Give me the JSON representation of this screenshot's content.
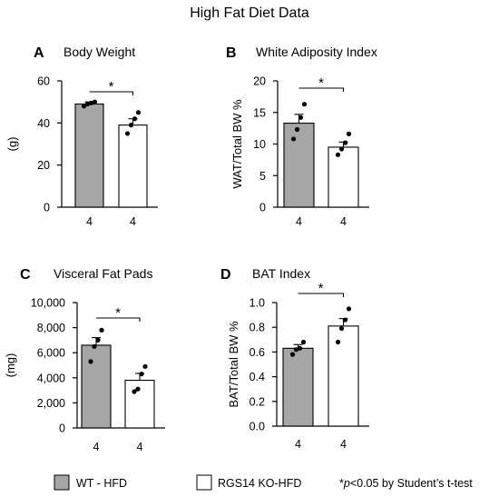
{
  "figure": {
    "title": "High Fat Diet Data",
    "legend": [
      {
        "label": "WT - HFD",
        "color": "#a6a6a6"
      },
      {
        "label": "RGS14 KO-HFD",
        "color": "#ffffff"
      }
    ],
    "footnote": {
      "prefix": "*",
      "italic": "p",
      "suffix": "<0.05 by Student’s t-test"
    }
  },
  "chart_data": [
    {
      "type": "bar",
      "panel_letter": "A",
      "title": "Body Weight",
      "ylabel": "(g)",
      "ylim": [
        0,
        60
      ],
      "yticks": [
        0,
        20,
        40,
        60
      ],
      "ytick_labels": [
        "0",
        "20",
        "40",
        "60"
      ],
      "categories": [
        "4",
        "4"
      ],
      "values": [
        49,
        39
      ],
      "errors": [
        1,
        3
      ],
      "points": [
        [
          48,
          49,
          49.5,
          50
        ],
        [
          35,
          39,
          42,
          45
        ]
      ],
      "significance": "*"
    },
    {
      "type": "bar",
      "panel_letter": "B",
      "title": "White Adiposity Index",
      "ylabel": "WAT/Total BW %",
      "ylim": [
        0,
        20
      ],
      "yticks": [
        0,
        5,
        10,
        15,
        20
      ],
      "ytick_labels": [
        "0",
        "5",
        "10",
        "15",
        "20"
      ],
      "categories": [
        "4",
        "4"
      ],
      "values": [
        13.3,
        9.5
      ],
      "errors": [
        1.4,
        0.8
      ],
      "points": [
        [
          10.8,
          12.3,
          14.2,
          16.3
        ],
        [
          8.3,
          9.2,
          10.2,
          11.6
        ]
      ],
      "significance": "*"
    },
    {
      "type": "bar",
      "panel_letter": "C",
      "title": "Visceral Fat Pads",
      "ylabel": "(mg)",
      "ylim": [
        0,
        10000
      ],
      "yticks": [
        0,
        2000,
        4000,
        6000,
        8000,
        10000
      ],
      "ytick_labels": [
        "0",
        "2,000",
        "4,000",
        "6,000",
        "8,000",
        "10,000"
      ],
      "categories": [
        "4",
        "4"
      ],
      "values": [
        6600,
        3800
      ],
      "errors": [
        600,
        550
      ],
      "points": [
        [
          5300,
          6500,
          7000,
          7800
        ],
        [
          2900,
          3100,
          4300,
          4900
        ]
      ],
      "significance": "*"
    },
    {
      "type": "bar",
      "panel_letter": "D",
      "title": "BAT Index",
      "ylabel": "BAT/Total BW %",
      "ylim": [
        0,
        1.0
      ],
      "yticks": [
        0,
        0.2,
        0.4,
        0.6,
        0.8,
        1.0
      ],
      "ytick_labels": [
        "0.0",
        "0.2",
        "0.4",
        "0.6",
        "0.8",
        "1.0"
      ],
      "categories": [
        "4",
        "4"
      ],
      "values": [
        0.63,
        0.81
      ],
      "errors": [
        0.03,
        0.06
      ],
      "points": [
        [
          0.58,
          0.62,
          0.63,
          0.68
        ],
        [
          0.68,
          0.79,
          0.86,
          0.95
        ]
      ],
      "significance": "*"
    }
  ]
}
